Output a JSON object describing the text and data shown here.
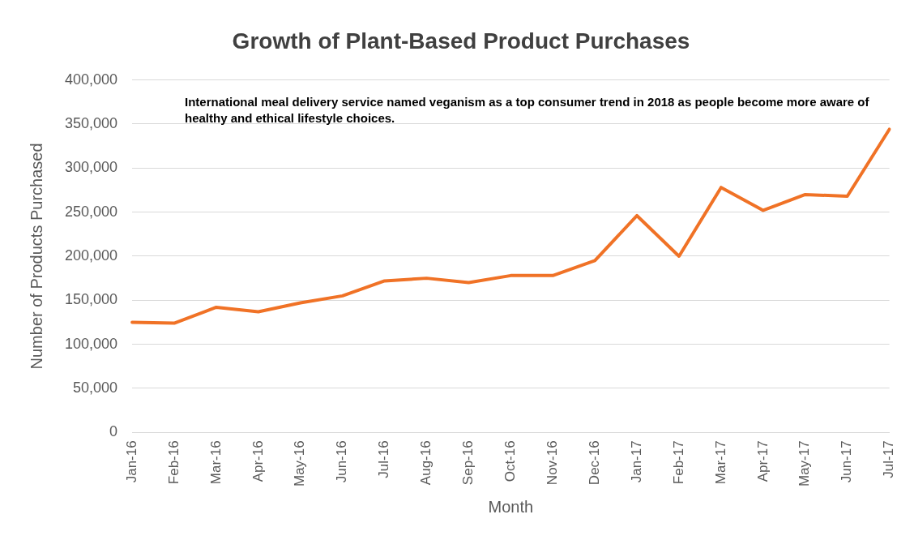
{
  "chart_data": {
    "type": "line",
    "title": "Growth of Plant-Based Product Purchases",
    "xlabel": "Month",
    "ylabel": "Number of Products Purchased",
    "categories": [
      "Jan-16",
      "Feb-16",
      "Mar-16",
      "Apr-16",
      "May-16",
      "Jun-16",
      "Jul-16",
      "Aug-16",
      "Sep-16",
      "Oct-16",
      "Nov-16",
      "Dec-16",
      "Jan-17",
      "Feb-17",
      "Mar-17",
      "Apr-17",
      "May-17",
      "Jun-17",
      "Jul-17"
    ],
    "series": [
      {
        "color": "#f07226",
        "values": [
          125000,
          124000,
          142000,
          137000,
          147000,
          155000,
          172000,
          175000,
          170000,
          178000,
          178000,
          195000,
          246000,
          200000,
          278000,
          252000,
          270000,
          268000,
          344000
        ]
      }
    ],
    "ylim": [
      0,
      400000
    ],
    "yticks": [
      {
        "value": 0,
        "label": "0"
      },
      {
        "value": 50000,
        "label": "50,000"
      },
      {
        "value": 100000,
        "label": "100,000"
      },
      {
        "value": 150000,
        "label": "150,000"
      },
      {
        "value": 200000,
        "label": "200,000"
      },
      {
        "value": 250000,
        "label": "250,000"
      },
      {
        "value": 300000,
        "label": "300,000"
      },
      {
        "value": 350000,
        "label": "350,000"
      },
      {
        "value": 400000,
        "label": "400,000"
      }
    ],
    "grid": "y",
    "legend": false,
    "marker": "none",
    "line_style": "solid",
    "annotations": [
      "International meal delivery service named veganism as a top consumer trend in 2018 as people become more aware of healthy and ethical lifestyle choices."
    ]
  }
}
